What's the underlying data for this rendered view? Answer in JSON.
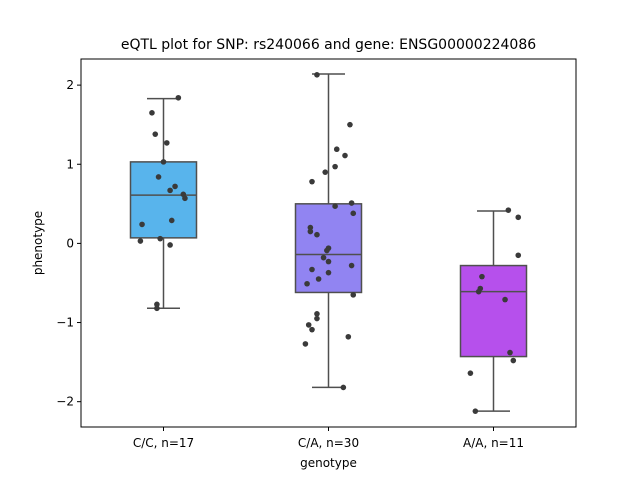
{
  "chart_data": {
    "type": "box",
    "title": "eQTL plot for SNP: rs240066 and gene: ENSG00000224086",
    "xlabel": "genotype",
    "ylabel": "phenotype",
    "ylim": [
      -2.32,
      2.33
    ],
    "yticks": [
      -2,
      -1,
      0,
      1,
      2
    ],
    "yticklabels": [
      "−2",
      "−1",
      "0",
      "1",
      "2"
    ],
    "grid": false,
    "categories": [
      "C/C, n=17",
      "C/A, n=30",
      "A/A, n=11"
    ],
    "colors": [
      "#58b4ec",
      "#9184f2",
      "#b650ec"
    ],
    "boxes": [
      {
        "category": "C/C, n=17",
        "whisker_low": -0.82,
        "q1": 0.07,
        "median": 0.61,
        "q3": 1.03,
        "whisker_high": 1.83
      },
      {
        "category": "C/A, n=30",
        "whisker_low": -1.82,
        "q1": -0.62,
        "median": -0.14,
        "q3": 0.5,
        "whisker_high": 2.14
      },
      {
        "category": "A/A, n=11",
        "whisker_low": -2.12,
        "q1": -1.43,
        "median": -0.61,
        "q3": -0.28,
        "whisker_high": 0.41
      }
    ],
    "points": [
      [
        {
          "dx": 0.09,
          "y": 1.84
        },
        {
          "dx": -0.07,
          "y": 1.65
        },
        {
          "dx": -0.05,
          "y": 1.38
        },
        {
          "dx": 0.02,
          "y": 1.27
        },
        {
          "dx": 0.0,
          "y": 1.03
        },
        {
          "dx": -0.03,
          "y": 0.84
        },
        {
          "dx": 0.07,
          "y": 0.72
        },
        {
          "dx": 0.04,
          "y": 0.67
        },
        {
          "dx": 0.12,
          "y": 0.62
        },
        {
          "dx": 0.13,
          "y": 0.57
        },
        {
          "dx": 0.05,
          "y": 0.29
        },
        {
          "dx": -0.13,
          "y": 0.24
        },
        {
          "dx": -0.02,
          "y": 0.06
        },
        {
          "dx": -0.14,
          "y": 0.03
        },
        {
          "dx": 0.04,
          "y": -0.02
        },
        {
          "dx": -0.04,
          "y": -0.77
        },
        {
          "dx": -0.04,
          "y": -0.82
        }
      ],
      [
        {
          "dx": -0.07,
          "y": 2.13
        },
        {
          "dx": 0.13,
          "y": 1.5
        },
        {
          "dx": 0.05,
          "y": 1.19
        },
        {
          "dx": 0.1,
          "y": 1.11
        },
        {
          "dx": 0.04,
          "y": 0.97
        },
        {
          "dx": -0.02,
          "y": 0.9
        },
        {
          "dx": -0.1,
          "y": 0.78
        },
        {
          "dx": 0.14,
          "y": 0.51
        },
        {
          "dx": 0.04,
          "y": 0.47
        },
        {
          "dx": 0.15,
          "y": 0.38
        },
        {
          "dx": -0.11,
          "y": 0.2
        },
        {
          "dx": -0.11,
          "y": 0.15
        },
        {
          "dx": -0.07,
          "y": 0.11
        },
        {
          "dx": 0.0,
          "y": -0.06
        },
        {
          "dx": -0.01,
          "y": -0.09
        },
        {
          "dx": -0.03,
          "y": -0.18
        },
        {
          "dx": 0.0,
          "y": -0.23
        },
        {
          "dx": 0.14,
          "y": -0.28
        },
        {
          "dx": -0.1,
          "y": -0.33
        },
        {
          "dx": 0.0,
          "y": -0.37
        },
        {
          "dx": -0.06,
          "y": -0.45
        },
        {
          "dx": -0.13,
          "y": -0.51
        },
        {
          "dx": 0.15,
          "y": -0.65
        },
        {
          "dx": -0.07,
          "y": -0.89
        },
        {
          "dx": -0.07,
          "y": -0.95
        },
        {
          "dx": -0.12,
          "y": -1.03
        },
        {
          "dx": -0.1,
          "y": -1.09
        },
        {
          "dx": 0.12,
          "y": -1.18
        },
        {
          "dx": -0.14,
          "y": -1.27
        },
        {
          "dx": 0.09,
          "y": -1.82
        }
      ],
      [
        {
          "dx": 0.09,
          "y": 0.42
        },
        {
          "dx": 0.15,
          "y": 0.33
        },
        {
          "dx": 0.15,
          "y": -0.15
        },
        {
          "dx": -0.07,
          "y": -0.42
        },
        {
          "dx": -0.08,
          "y": -0.57
        },
        {
          "dx": -0.09,
          "y": -0.61
        },
        {
          "dx": 0.07,
          "y": -0.71
        },
        {
          "dx": 0.1,
          "y": -1.38
        },
        {
          "dx": 0.12,
          "y": -1.48
        },
        {
          "dx": -0.14,
          "y": -1.64
        },
        {
          "dx": -0.11,
          "y": -2.12
        }
      ]
    ]
  }
}
